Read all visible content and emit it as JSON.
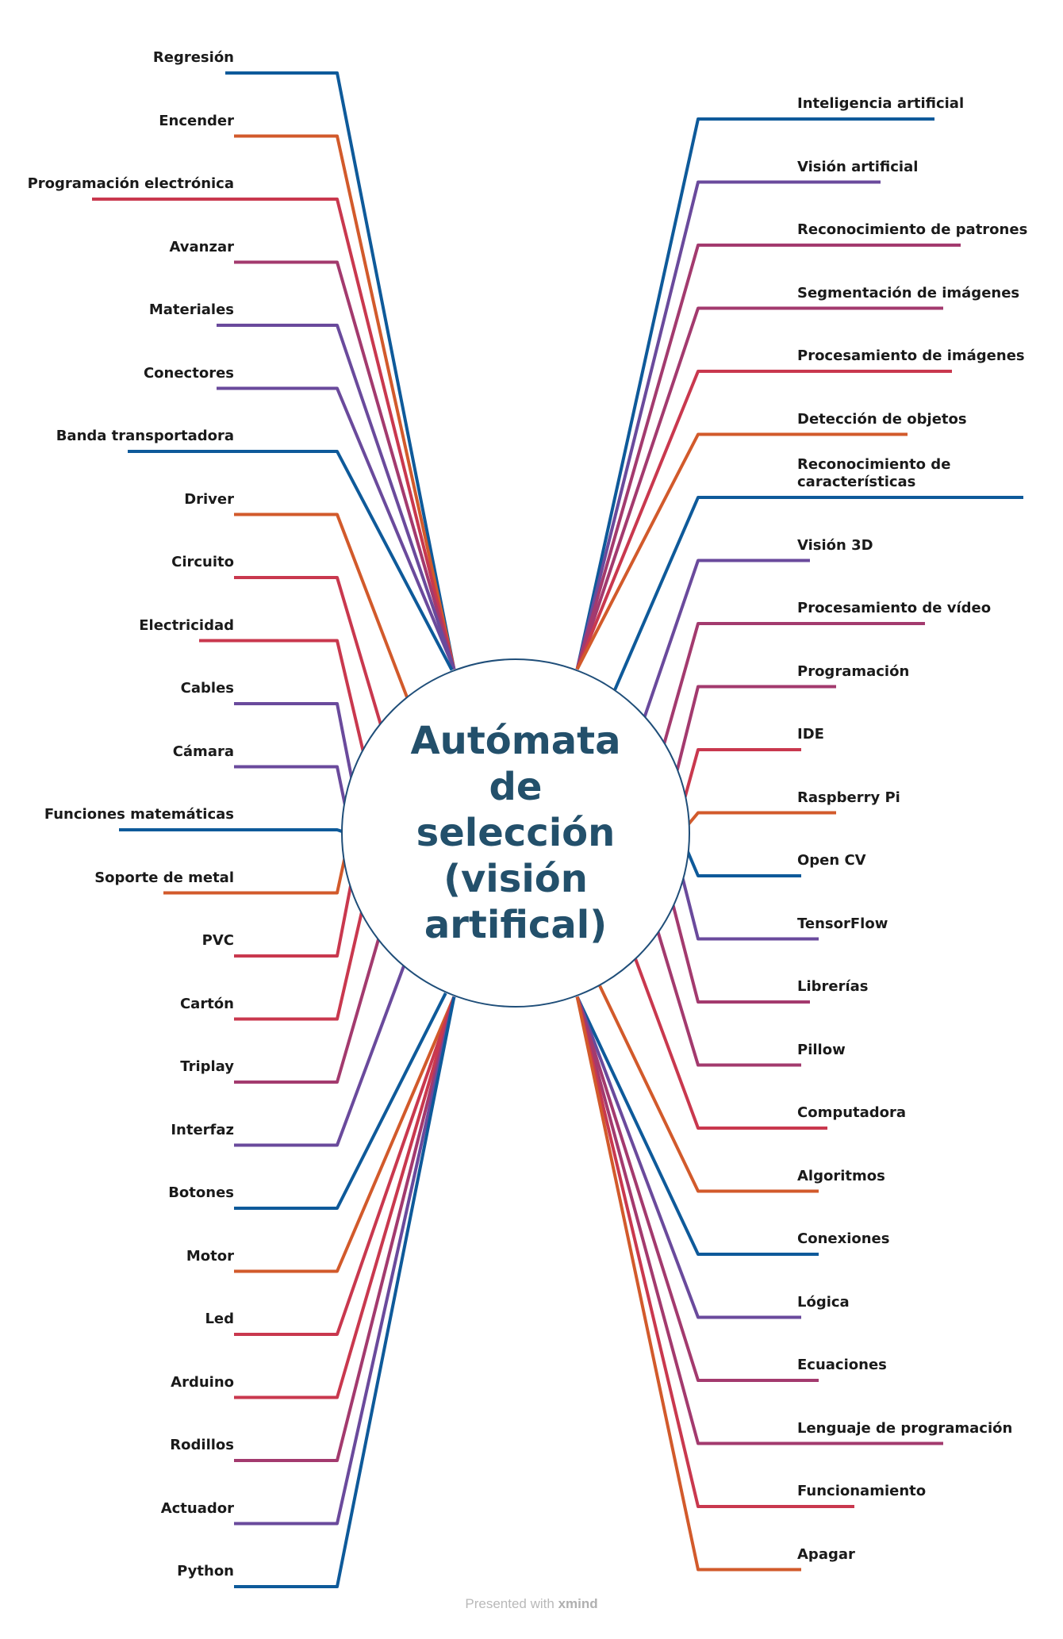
{
  "center": {
    "title": "Autómata de selección (visión artifical)"
  },
  "footer": {
    "prefix": "Presented with",
    "brand": "xmind"
  },
  "colors": {
    "blue": "#0e5a9a",
    "orange": "#d25a2b",
    "red": "#c9384e",
    "magenta": "#a33a6e",
    "purple": "#6a4a9c",
    "outline": "#1f4e79",
    "title": "#23506b"
  },
  "left_topics": [
    {
      "label": "Regresión",
      "color": "blue"
    },
    {
      "label": "Encender",
      "color": "orange"
    },
    {
      "label": "Programación electrónica",
      "color": "red"
    },
    {
      "label": "Avanzar",
      "color": "magenta"
    },
    {
      "label": "Materiales",
      "color": "purple"
    },
    {
      "label": "Conectores",
      "color": "purple"
    },
    {
      "label": "Banda transportadora",
      "color": "blue"
    },
    {
      "label": "Driver",
      "color": "orange"
    },
    {
      "label": "Circuito",
      "color": "red"
    },
    {
      "label": "Electricidad",
      "color": "red"
    },
    {
      "label": "Cables",
      "color": "purple"
    },
    {
      "label": "Cámara",
      "color": "purple"
    },
    {
      "label": "Funciones matemáticas",
      "color": "blue"
    },
    {
      "label": "Soporte de metal",
      "color": "orange"
    },
    {
      "label": "PVC",
      "color": "red"
    },
    {
      "label": "Cartón",
      "color": "red"
    },
    {
      "label": "Triplay",
      "color": "magenta"
    },
    {
      "label": "Interfaz",
      "color": "purple"
    },
    {
      "label": "Botones",
      "color": "blue"
    },
    {
      "label": "Motor",
      "color": "orange"
    },
    {
      "label": "Led",
      "color": "red"
    },
    {
      "label": "Arduino",
      "color": "red"
    },
    {
      "label": "Rodillos",
      "color": "magenta"
    },
    {
      "label": "Actuador",
      "color": "purple"
    },
    {
      "label": "Python",
      "color": "blue"
    }
  ],
  "right_topics": [
    {
      "label": "Inteligencia artificial",
      "color": "blue"
    },
    {
      "label": "Visión artificial",
      "color": "purple"
    },
    {
      "label": "Reconocimiento de patrones",
      "color": "magenta"
    },
    {
      "label": "Segmentación de imágenes",
      "color": "magenta"
    },
    {
      "label": "Procesamiento de imágenes",
      "color": "red"
    },
    {
      "label": "Detección de objetos",
      "color": "orange"
    },
    {
      "label": "Reconocimiento de características",
      "color": "blue"
    },
    {
      "label": "Visión 3D",
      "color": "purple"
    },
    {
      "label": "Procesamiento de vídeo",
      "color": "magenta"
    },
    {
      "label": "Programación",
      "color": "magenta"
    },
    {
      "label": "IDE",
      "color": "red"
    },
    {
      "label": "Raspberry Pi",
      "color": "orange"
    },
    {
      "label": "Open CV",
      "color": "blue"
    },
    {
      "label": "TensorFlow",
      "color": "purple"
    },
    {
      "label": "Librerías",
      "color": "magenta"
    },
    {
      "label": "Pillow",
      "color": "magenta"
    },
    {
      "label": "Computadora",
      "color": "red"
    },
    {
      "label": "Algoritmos",
      "color": "orange"
    },
    {
      "label": "Conexiones",
      "color": "blue"
    },
    {
      "label": "Lógica",
      "color": "purple"
    },
    {
      "label": "Ecuaciones",
      "color": "magenta"
    },
    {
      "label": "Lenguaje de programación",
      "color": "magenta"
    },
    {
      "label": "Funcionamiento",
      "color": "red"
    },
    {
      "label": "Apagar",
      "color": "orange"
    }
  ]
}
